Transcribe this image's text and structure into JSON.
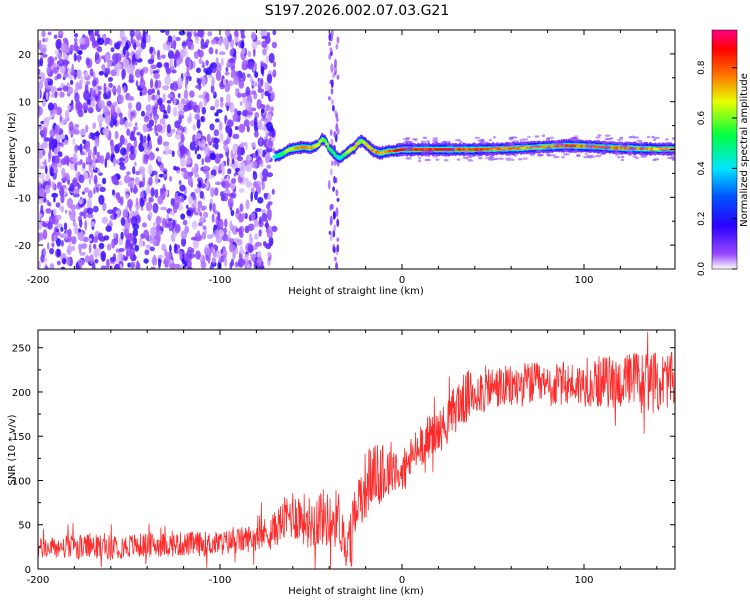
{
  "title": "S197.2026.002.07.03.G21",
  "chart_data": [
    {
      "type": "heatmap",
      "name": "spectrogram",
      "xlabel": "Height of straight line (km)",
      "ylabel": "Frequency (Hz)",
      "xlim": [
        -200,
        150
      ],
      "ylim": [
        -25,
        25
      ],
      "xticks": [
        -200,
        -100,
        0,
        100
      ],
      "xtick_labels": [
        "-200",
        "-100",
        "0",
        "100"
      ],
      "yticks": [
        -20,
        -10,
        0,
        10,
        20
      ],
      "ytick_labels": [
        "-20",
        "-10",
        "0",
        "10",
        "20"
      ],
      "colorbar": {
        "label": "Normalized spectral amplitude",
        "range": [
          0,
          0.95
        ],
        "ticks": [
          0.0,
          0.2,
          0.4,
          0.6,
          0.8
        ],
        "tick_labels": [
          "0.0",
          "0.2",
          "0.4",
          "0.6",
          "0.8"
        ],
        "colormap": [
          "#ffffff",
          "#7f00ff",
          "#0000ff",
          "#00ffff",
          "#00ff00",
          "#ffff00",
          "#ff0000",
          "#ff0080"
        ]
      },
      "noise_region": {
        "x": [
          -200,
          -70
        ],
        "freq": [
          -25,
          25
        ],
        "level": 0.15
      },
      "sparse_column": {
        "x": [
          -40,
          -35
        ],
        "freq": [
          -25,
          25
        ]
      },
      "ridge": {
        "x": [
          -70,
          -66,
          -62,
          -58,
          -54,
          -50,
          -46,
          -44,
          -42,
          -40,
          -38,
          -36,
          -34,
          -32,
          -30,
          -28,
          -26,
          -24,
          -22,
          -20,
          -18,
          -16,
          -14,
          -12,
          -10,
          -8,
          -6,
          -4,
          -2,
          0,
          10,
          20,
          30,
          40,
          50,
          60,
          70,
          80,
          90,
          100,
          110,
          120,
          130,
          140,
          150
        ],
        "freq": [
          -1.5,
          -1,
          0,
          0.3,
          0.5,
          0.3,
          1,
          2.2,
          1.8,
          0.2,
          -0.5,
          -1.5,
          -1.8,
          -1.2,
          -0.6,
          0,
          0.4,
          1.5,
          1.8,
          1.2,
          0.5,
          -0.2,
          -0.5,
          -0.8,
          -0.6,
          -0.4,
          -0.3,
          -0.3,
          -0.1,
          0,
          0,
          0,
          0,
          0,
          0.1,
          0.2,
          0.4,
          0.6,
          0.8,
          0.7,
          0.5,
          0.3,
          0.2,
          0.1,
          0.1
        ],
        "amplitude": [
          0.45,
          0.6,
          0.7,
          0.8,
          0.85,
          0.8,
          0.75,
          0.6,
          0.7,
          0.65,
          0.55,
          0.5,
          0.5,
          0.6,
          0.7,
          0.75,
          0.8,
          0.7,
          0.65,
          0.75,
          0.8,
          0.85,
          0.85,
          0.8,
          0.85,
          0.9,
          0.9,
          0.9,
          0.95,
          0.95,
          0.95,
          0.95,
          0.9,
          0.9,
          0.85,
          0.85,
          0.8,
          0.85,
          0.9,
          0.85,
          0.85,
          0.85,
          0.85,
          0.8,
          0.8
        ]
      }
    },
    {
      "type": "line",
      "name": "snr",
      "xlabel": "Height of straight line (km)",
      "ylabel": "SNR (10 * v/v)",
      "xlim": [
        -200,
        150
      ],
      "ylim": [
        0,
        270
      ],
      "xticks": [
        -200,
        -100,
        0,
        100
      ],
      "xtick_labels": [
        "-200",
        "-100",
        "0",
        "100"
      ],
      "yticks": [
        0,
        50,
        100,
        150,
        200,
        250
      ],
      "ytick_labels": [
        "0",
        "50",
        "100",
        "150",
        "200",
        "250"
      ],
      "color": "#ff2b2b",
      "series": [
        {
          "name": "SNR",
          "x": [
            -200,
            -180,
            -160,
            -140,
            -120,
            -100,
            -90,
            -80,
            -70,
            -65,
            -60,
            -55,
            -50,
            -45,
            -40,
            -35,
            -30,
            -25,
            -20,
            -15,
            -10,
            -5,
            0,
            5,
            10,
            15,
            20,
            25,
            30,
            40,
            50,
            60,
            70,
            80,
            90,
            100,
            110,
            120,
            130,
            140,
            150
          ],
          "y": [
            23,
            25,
            25,
            27,
            28,
            29,
            32,
            36,
            45,
            55,
            63,
            58,
            52,
            60,
            55,
            58,
            25,
            75,
            95,
            110,
            100,
            120,
            105,
            125,
            140,
            150,
            155,
            165,
            185,
            200,
            205,
            205,
            210,
            205,
            210,
            208,
            212,
            210,
            215,
            210,
            215
          ],
          "spread": [
            12,
            14,
            14,
            14,
            14,
            14,
            15,
            16,
            20,
            25,
            30,
            30,
            30,
            35,
            30,
            35,
            20,
            30,
            40,
            35,
            30,
            30,
            25,
            25,
            25,
            25,
            25,
            25,
            30,
            30,
            25,
            25,
            25,
            25,
            25,
            25,
            30,
            30,
            35,
            35,
            30
          ]
        }
      ]
    }
  ]
}
